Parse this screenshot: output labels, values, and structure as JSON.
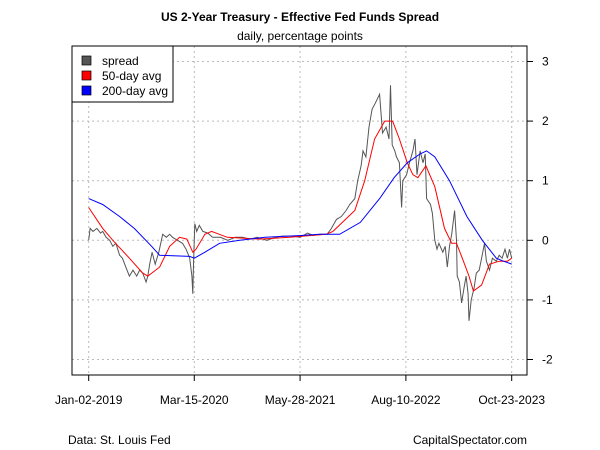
{
  "chart_data": {
    "type": "line",
    "title": "US 2-Year Treasury - Effective Fed Funds Spread",
    "subtitle": "daily, percentage points",
    "xlabel": "",
    "ylabel": "",
    "x_ticks": [
      "Jan-02-2019",
      "Mar-15-2020",
      "May-28-2021",
      "Aug-10-2022",
      "Oct-23-2023"
    ],
    "x_tick_dates": [
      "2019-01-02",
      "2020-03-15",
      "2021-05-28",
      "2022-08-10",
      "2023-10-23"
    ],
    "y_ticks": [
      3,
      2,
      1,
      0,
      -1,
      -2
    ],
    "ylim": [
      -2.25,
      3.25
    ],
    "xlim": [
      "2018-10-20",
      "2024-01-05"
    ],
    "grid": true,
    "legend_position": "top-left",
    "y_axis_side": "right",
    "source": "Data: St. Louis Fed",
    "credit": "CapitalSpectator.com",
    "series": [
      {
        "name": "spread",
        "color": "#555555",
        "points": [
          [
            "2019-01-02",
            0.0
          ],
          [
            "2019-01-08",
            0.2
          ],
          [
            "2019-01-20",
            0.15
          ],
          [
            "2019-02-05",
            0.2
          ],
          [
            "2019-02-20",
            0.12
          ],
          [
            "2019-03-01",
            0.15
          ],
          [
            "2019-03-15",
            0.05
          ],
          [
            "2019-03-30",
            0.0
          ],
          [
            "2019-04-12",
            -0.1
          ],
          [
            "2019-04-25",
            -0.05
          ],
          [
            "2019-05-10",
            -0.25
          ],
          [
            "2019-05-22",
            -0.3
          ],
          [
            "2019-06-05",
            -0.45
          ],
          [
            "2019-06-20",
            -0.6
          ],
          [
            "2019-07-05",
            -0.5
          ],
          [
            "2019-07-20",
            -0.6
          ],
          [
            "2019-08-01",
            -0.5
          ],
          [
            "2019-08-14",
            -0.55
          ],
          [
            "2019-08-28",
            -0.7
          ],
          [
            "2019-09-04",
            -0.6
          ],
          [
            "2019-09-12",
            -0.4
          ],
          [
            "2019-09-22",
            -0.2
          ],
          [
            "2019-10-05",
            -0.4
          ],
          [
            "2019-10-20",
            -0.2
          ],
          [
            "2019-11-05",
            0.1
          ],
          [
            "2019-11-20",
            0.05
          ],
          [
            "2019-12-04",
            0.1
          ],
          [
            "2019-12-16",
            0.05
          ],
          [
            "2020-01-05",
            0.0
          ],
          [
            "2020-01-26",
            -0.05
          ],
          [
            "2020-02-10",
            -0.15
          ],
          [
            "2020-02-25",
            -0.3
          ],
          [
            "2020-03-05",
            -0.6
          ],
          [
            "2020-03-09",
            -0.9
          ],
          [
            "2020-03-12",
            -0.4
          ],
          [
            "2020-03-17",
            0.28
          ],
          [
            "2020-03-25",
            0.15
          ],
          [
            "2020-04-05",
            0.25
          ],
          [
            "2020-04-20",
            0.15
          ],
          [
            "2020-05-10",
            0.12
          ],
          [
            "2020-05-30",
            0.05
          ],
          [
            "2020-07-01",
            0.05
          ],
          [
            "2020-08-01",
            0.0
          ],
          [
            "2020-09-01",
            0.05
          ],
          [
            "2020-10-01",
            0.05
          ],
          [
            "2020-11-01",
            0.02
          ],
          [
            "2020-12-01",
            0.05
          ],
          [
            "2021-01-10",
            0.0
          ],
          [
            "2021-02-15",
            0.05
          ],
          [
            "2021-03-15",
            0.07
          ],
          [
            "2021-04-28",
            0.07
          ],
          [
            "2021-05-28",
            0.05
          ],
          [
            "2021-06-28",
            0.12
          ],
          [
            "2021-07-20",
            0.08
          ],
          [
            "2021-08-17",
            0.1
          ],
          [
            "2021-09-17",
            0.1
          ],
          [
            "2021-10-05",
            0.2
          ],
          [
            "2021-10-26",
            0.35
          ],
          [
            "2021-11-15",
            0.4
          ],
          [
            "2021-12-05",
            0.5
          ],
          [
            "2021-12-20",
            0.6
          ],
          [
            "2022-01-10",
            0.7
          ],
          [
            "2022-01-22",
            1.0
          ],
          [
            "2022-02-05",
            1.25
          ],
          [
            "2022-02-13",
            1.5
          ],
          [
            "2022-02-25",
            1.4
          ],
          [
            "2022-03-10",
            1.9
          ],
          [
            "2022-03-23",
            2.2
          ],
          [
            "2022-04-05",
            2.3
          ],
          [
            "2022-04-23",
            2.45
          ],
          [
            "2022-05-05",
            1.8
          ],
          [
            "2022-05-20",
            1.9
          ],
          [
            "2022-06-01",
            1.7
          ],
          [
            "2022-06-07",
            2.6
          ],
          [
            "2022-06-14",
            1.6
          ],
          [
            "2022-06-25",
            1.5
          ],
          [
            "2022-07-02",
            1.4
          ],
          [
            "2022-07-14",
            1.3
          ],
          [
            "2022-07-23",
            0.55
          ],
          [
            "2022-07-28",
            1.0
          ],
          [
            "2022-08-13",
            1.1
          ],
          [
            "2022-08-25",
            1.3
          ],
          [
            "2022-09-08",
            1.5
          ],
          [
            "2022-09-17",
            1.7
          ],
          [
            "2022-09-25",
            1.1
          ],
          [
            "2022-10-08",
            1.5
          ],
          [
            "2022-10-20",
            1.3
          ],
          [
            "2022-10-29",
            1.45
          ],
          [
            "2022-11-04",
            0.7
          ],
          [
            "2022-11-20",
            0.6
          ],
          [
            "2022-11-28",
            0.45
          ],
          [
            "2022-12-08",
            0.0
          ],
          [
            "2022-12-17",
            -0.15
          ],
          [
            "2022-12-25",
            -0.05
          ],
          [
            "2023-01-10",
            -0.2
          ],
          [
            "2023-01-20",
            -0.1
          ],
          [
            "2023-01-29",
            -0.45
          ],
          [
            "2023-02-07",
            -0.1
          ],
          [
            "2023-02-16",
            0.1
          ],
          [
            "2023-02-28",
            0.5
          ],
          [
            "2023-03-08",
            0.0
          ],
          [
            "2023-03-11",
            -0.6
          ],
          [
            "2023-03-20",
            -0.7
          ],
          [
            "2023-03-29",
            -1.05
          ],
          [
            "2023-04-08",
            -0.8
          ],
          [
            "2023-04-17",
            -0.6
          ],
          [
            "2023-04-25",
            -0.9
          ],
          [
            "2023-04-29",
            -1.35
          ],
          [
            "2023-05-08",
            -1.0
          ],
          [
            "2023-05-20",
            -0.8
          ],
          [
            "2023-05-29",
            -0.55
          ],
          [
            "2023-06-10",
            -0.5
          ],
          [
            "2023-06-20",
            -0.3
          ],
          [
            "2023-07-02",
            -0.05
          ],
          [
            "2023-07-10",
            -0.35
          ],
          [
            "2023-07-23",
            -0.5
          ],
          [
            "2023-08-04",
            -0.3
          ],
          [
            "2023-08-20",
            -0.35
          ],
          [
            "2023-09-01",
            -0.25
          ],
          [
            "2023-09-13",
            -0.3
          ],
          [
            "2023-09-25",
            -0.15
          ],
          [
            "2023-10-05",
            -0.3
          ],
          [
            "2023-10-14",
            -0.15
          ],
          [
            "2023-10-23",
            -0.3
          ]
        ]
      },
      {
        "name": "50-day avg",
        "color": "#ff0000",
        "points": [
          [
            "2019-01-02",
            0.55
          ],
          [
            "2019-03-01",
            0.2
          ],
          [
            "2019-04-12",
            0.0
          ],
          [
            "2019-06-20",
            -0.3
          ],
          [
            "2019-08-14",
            -0.55
          ],
          [
            "2019-09-04",
            -0.6
          ],
          [
            "2019-10-23",
            -0.45
          ],
          [
            "2019-12-04",
            -0.1
          ],
          [
            "2020-01-14",
            0.05
          ],
          [
            "2020-02-13",
            0.02
          ],
          [
            "2020-03-09",
            -0.2
          ],
          [
            "2020-03-22",
            -0.15
          ],
          [
            "2020-04-28",
            0.1
          ],
          [
            "2020-05-26",
            0.15
          ],
          [
            "2020-07-30",
            0.05
          ],
          [
            "2020-12-12",
            0.02
          ],
          [
            "2021-04-15",
            0.05
          ],
          [
            "2021-09-13",
            0.1
          ],
          [
            "2021-10-11",
            0.15
          ],
          [
            "2022-01-10",
            0.5
          ],
          [
            "2022-02-20",
            1.0
          ],
          [
            "2022-04-02",
            1.7
          ],
          [
            "2022-05-14",
            2.0
          ],
          [
            "2022-06-16",
            2.0
          ],
          [
            "2022-07-14",
            1.7
          ],
          [
            "2022-08-16",
            1.3
          ],
          [
            "2022-09-08",
            1.1
          ],
          [
            "2022-09-29",
            1.05
          ],
          [
            "2022-11-01",
            1.25
          ],
          [
            "2022-12-08",
            0.9
          ],
          [
            "2023-01-17",
            0.2
          ],
          [
            "2023-02-16",
            -0.05
          ],
          [
            "2023-03-08",
            -0.05
          ],
          [
            "2023-04-01",
            -0.3
          ],
          [
            "2023-04-29",
            -0.6
          ],
          [
            "2023-05-17",
            -0.85
          ],
          [
            "2023-06-20",
            -0.75
          ],
          [
            "2023-07-23",
            -0.4
          ],
          [
            "2023-09-01",
            -0.35
          ],
          [
            "2023-10-05",
            -0.35
          ],
          [
            "2023-10-23",
            -0.3
          ]
        ]
      },
      {
        "name": "200-day avg",
        "color": "#0000ff",
        "points": [
          [
            "2019-01-02",
            0.7
          ],
          [
            "2019-03-01",
            0.6
          ],
          [
            "2019-05-10",
            0.4
          ],
          [
            "2019-07-10",
            0.2
          ],
          [
            "2019-09-20",
            -0.1
          ],
          [
            "2019-10-23",
            -0.25
          ],
          [
            "2020-02-25",
            -0.27
          ],
          [
            "2020-03-15",
            -0.3
          ],
          [
            "2020-04-28",
            -0.2
          ],
          [
            "2020-06-28",
            -0.05
          ],
          [
            "2020-09-20",
            0.0
          ],
          [
            "2021-01-02",
            0.05
          ],
          [
            "2021-05-31",
            0.08
          ],
          [
            "2021-08-17",
            0.1
          ],
          [
            "2021-11-08",
            0.1
          ],
          [
            "2022-02-02",
            0.3
          ],
          [
            "2022-04-23",
            0.7
          ],
          [
            "2022-06-22",
            1.05
          ],
          [
            "2022-08-16",
            1.3
          ],
          [
            "2022-10-08",
            1.45
          ],
          [
            "2022-11-04",
            1.5
          ],
          [
            "2022-12-08",
            1.4
          ],
          [
            "2023-02-07",
            1.0
          ],
          [
            "2023-04-20",
            0.4
          ],
          [
            "2023-06-23",
            0.0
          ],
          [
            "2023-08-20",
            -0.3
          ],
          [
            "2023-09-19",
            -0.35
          ],
          [
            "2023-10-23",
            -0.4
          ]
        ]
      }
    ]
  }
}
